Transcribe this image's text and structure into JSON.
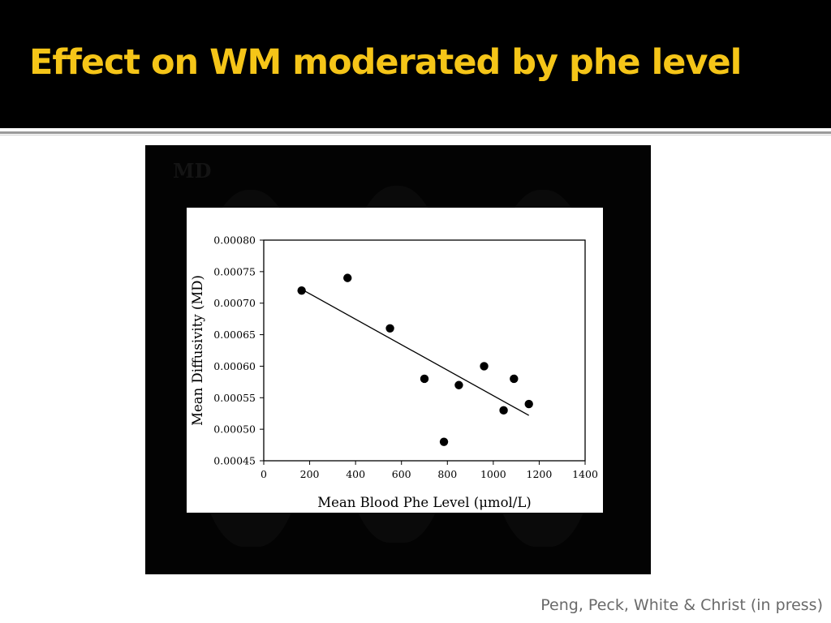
{
  "slide": {
    "title": "Effect on WM moderated by phe level",
    "figure_label": "MD",
    "citation": "Peng, Peck, White & Christ (in press)"
  },
  "colors": {
    "title_bar": "#000000",
    "title_text": "#f5c518",
    "figure_bg": "#030303",
    "citation_text": "#6a6a6a"
  },
  "chart_data": {
    "type": "scatter",
    "xlabel": "Mean Blood Phe Level (μmol/L)",
    "ylabel": "Mean Diffusivity (MD)",
    "xlim": [
      0,
      1400
    ],
    "ylim": [
      0.00045,
      0.0008
    ],
    "x_ticks": [
      "0",
      "200",
      "400",
      "600",
      "800",
      "1000",
      "1200",
      "1400"
    ],
    "y_ticks": [
      "0.00045",
      "0.00050",
      "0.00055",
      "0.00060",
      "0.00065",
      "0.00070",
      "0.00075",
      "0.00080"
    ],
    "points": [
      {
        "x": 165,
        "y": 0.00072
      },
      {
        "x": 365,
        "y": 0.00074
      },
      {
        "x": 550,
        "y": 0.00066
      },
      {
        "x": 700,
        "y": 0.00058
      },
      {
        "x": 785,
        "y": 0.00048
      },
      {
        "x": 850,
        "y": 0.00057
      },
      {
        "x": 960,
        "y": 0.0006
      },
      {
        "x": 1045,
        "y": 0.00053
      },
      {
        "x": 1090,
        "y": 0.00058
      },
      {
        "x": 1155,
        "y": 0.00054
      }
    ],
    "trendline": {
      "x": [
        165,
        1155
      ],
      "y": [
        0.000722,
        0.000522
      ]
    },
    "grid": false,
    "legend": "none"
  }
}
